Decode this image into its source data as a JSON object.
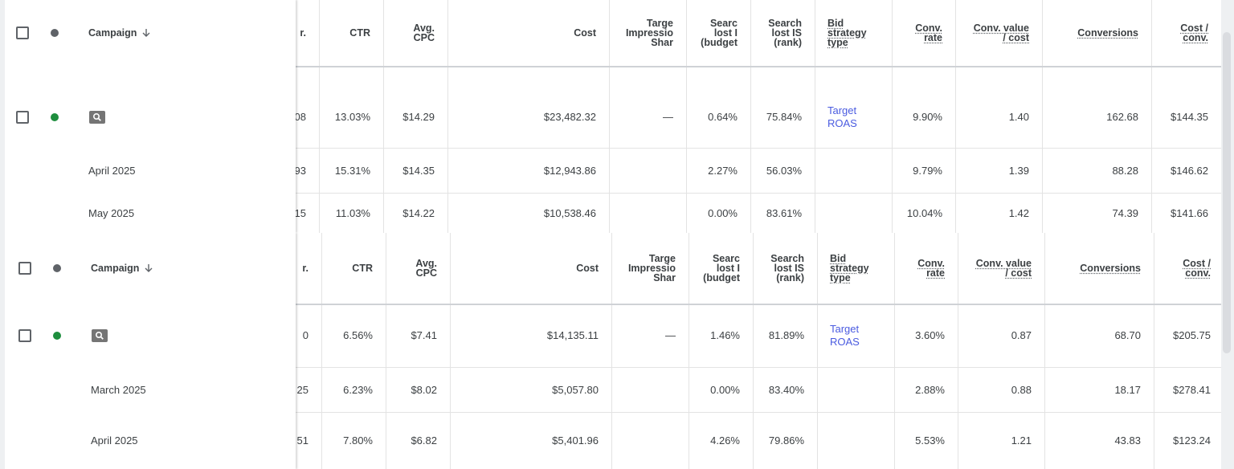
{
  "panels": [
    {
      "header": {
        "campaign": "Campaign",
        "col1": "r.",
        "ctr": "CTR",
        "cpc": "Avg.\nCPC",
        "cost": "Cost",
        "tis": "Targe\nImpressio\nShar",
        "slb": "Searc\nlost I\n(budget",
        "slr": "Search\nlost IS\n(rank)",
        "bid": "Bid\nstrategy\ntype",
        "cr": "Conv.\nrate",
        "cvc": "Conv. value\n/ cost",
        "conv": "Conversions",
        "cpa": "Cost /\nconv."
      },
      "rows": [
        {
          "col1": "08",
          "ctr": "13.03%",
          "cpc": "$14.29",
          "cost": "$23,482.32",
          "tis": "—",
          "slb": "0.64%",
          "slr": "75.84%",
          "bid": "Target\nROAS",
          "cr": "9.90%",
          "cvc": "1.40",
          "conv": "162.68",
          "cpa": "$144.35"
        },
        {
          "campaign": "April 2025",
          "col1": "93",
          "ctr": "15.31%",
          "cpc": "$14.35",
          "cost": "$12,943.86",
          "slb": "2.27%",
          "slr": "56.03%",
          "cr": "9.79%",
          "cvc": "1.39",
          "conv": "88.28",
          "cpa": "$146.62"
        },
        {
          "campaign": "May 2025",
          "col1": "15",
          "ctr": "11.03%",
          "cpc": "$14.22",
          "cost": "$10,538.46",
          "slb": "0.00%",
          "slr": "83.61%",
          "cr": "10.04%",
          "cvc": "1.42",
          "conv": "74.39",
          "cpa": "$141.66"
        }
      ]
    },
    {
      "header": {
        "campaign": "Campaign",
        "col1": "r.",
        "ctr": "CTR",
        "cpc": "Avg.\nCPC",
        "cost": "Cost",
        "tis": "Targe\nImpressio\nShar",
        "slb": "Searc\nlost I\n(budget",
        "slr": "Search\nlost IS\n(rank)",
        "bid": "Bid\nstrategy\ntype",
        "cr": "Conv.\nrate",
        "cvc": "Conv. value\n/ cost",
        "conv": "Conversions",
        "cpa": "Cost /\nconv."
      },
      "rows": [
        {
          "col1": "0",
          "ctr": "6.56%",
          "cpc": "$7.41",
          "cost": "$14,135.11",
          "tis": "—",
          "slb": "1.46%",
          "slr": "81.89%",
          "bid": "Target\nROAS",
          "cr": "3.60%",
          "cvc": "0.87",
          "conv": "68.70",
          "cpa": "$205.75"
        },
        {
          "campaign": "March 2025",
          "col1": "25",
          "ctr": "6.23%",
          "cpc": "$8.02",
          "cost": "$5,057.80",
          "slb": "0.00%",
          "slr": "83.40%",
          "cr": "2.88%",
          "cvc": "0.88",
          "conv": "18.17",
          "cpa": "$278.41"
        },
        {
          "campaign": "April 2025",
          "col1": "51",
          "ctr": "7.80%",
          "cpc": "$6.82",
          "cost": "$5,401.96",
          "slb": "4.26%",
          "slr": "79.86%",
          "cr": "5.53%",
          "cvc": "1.21",
          "conv": "43.83",
          "cpa": "$123.24"
        }
      ]
    }
  ]
}
